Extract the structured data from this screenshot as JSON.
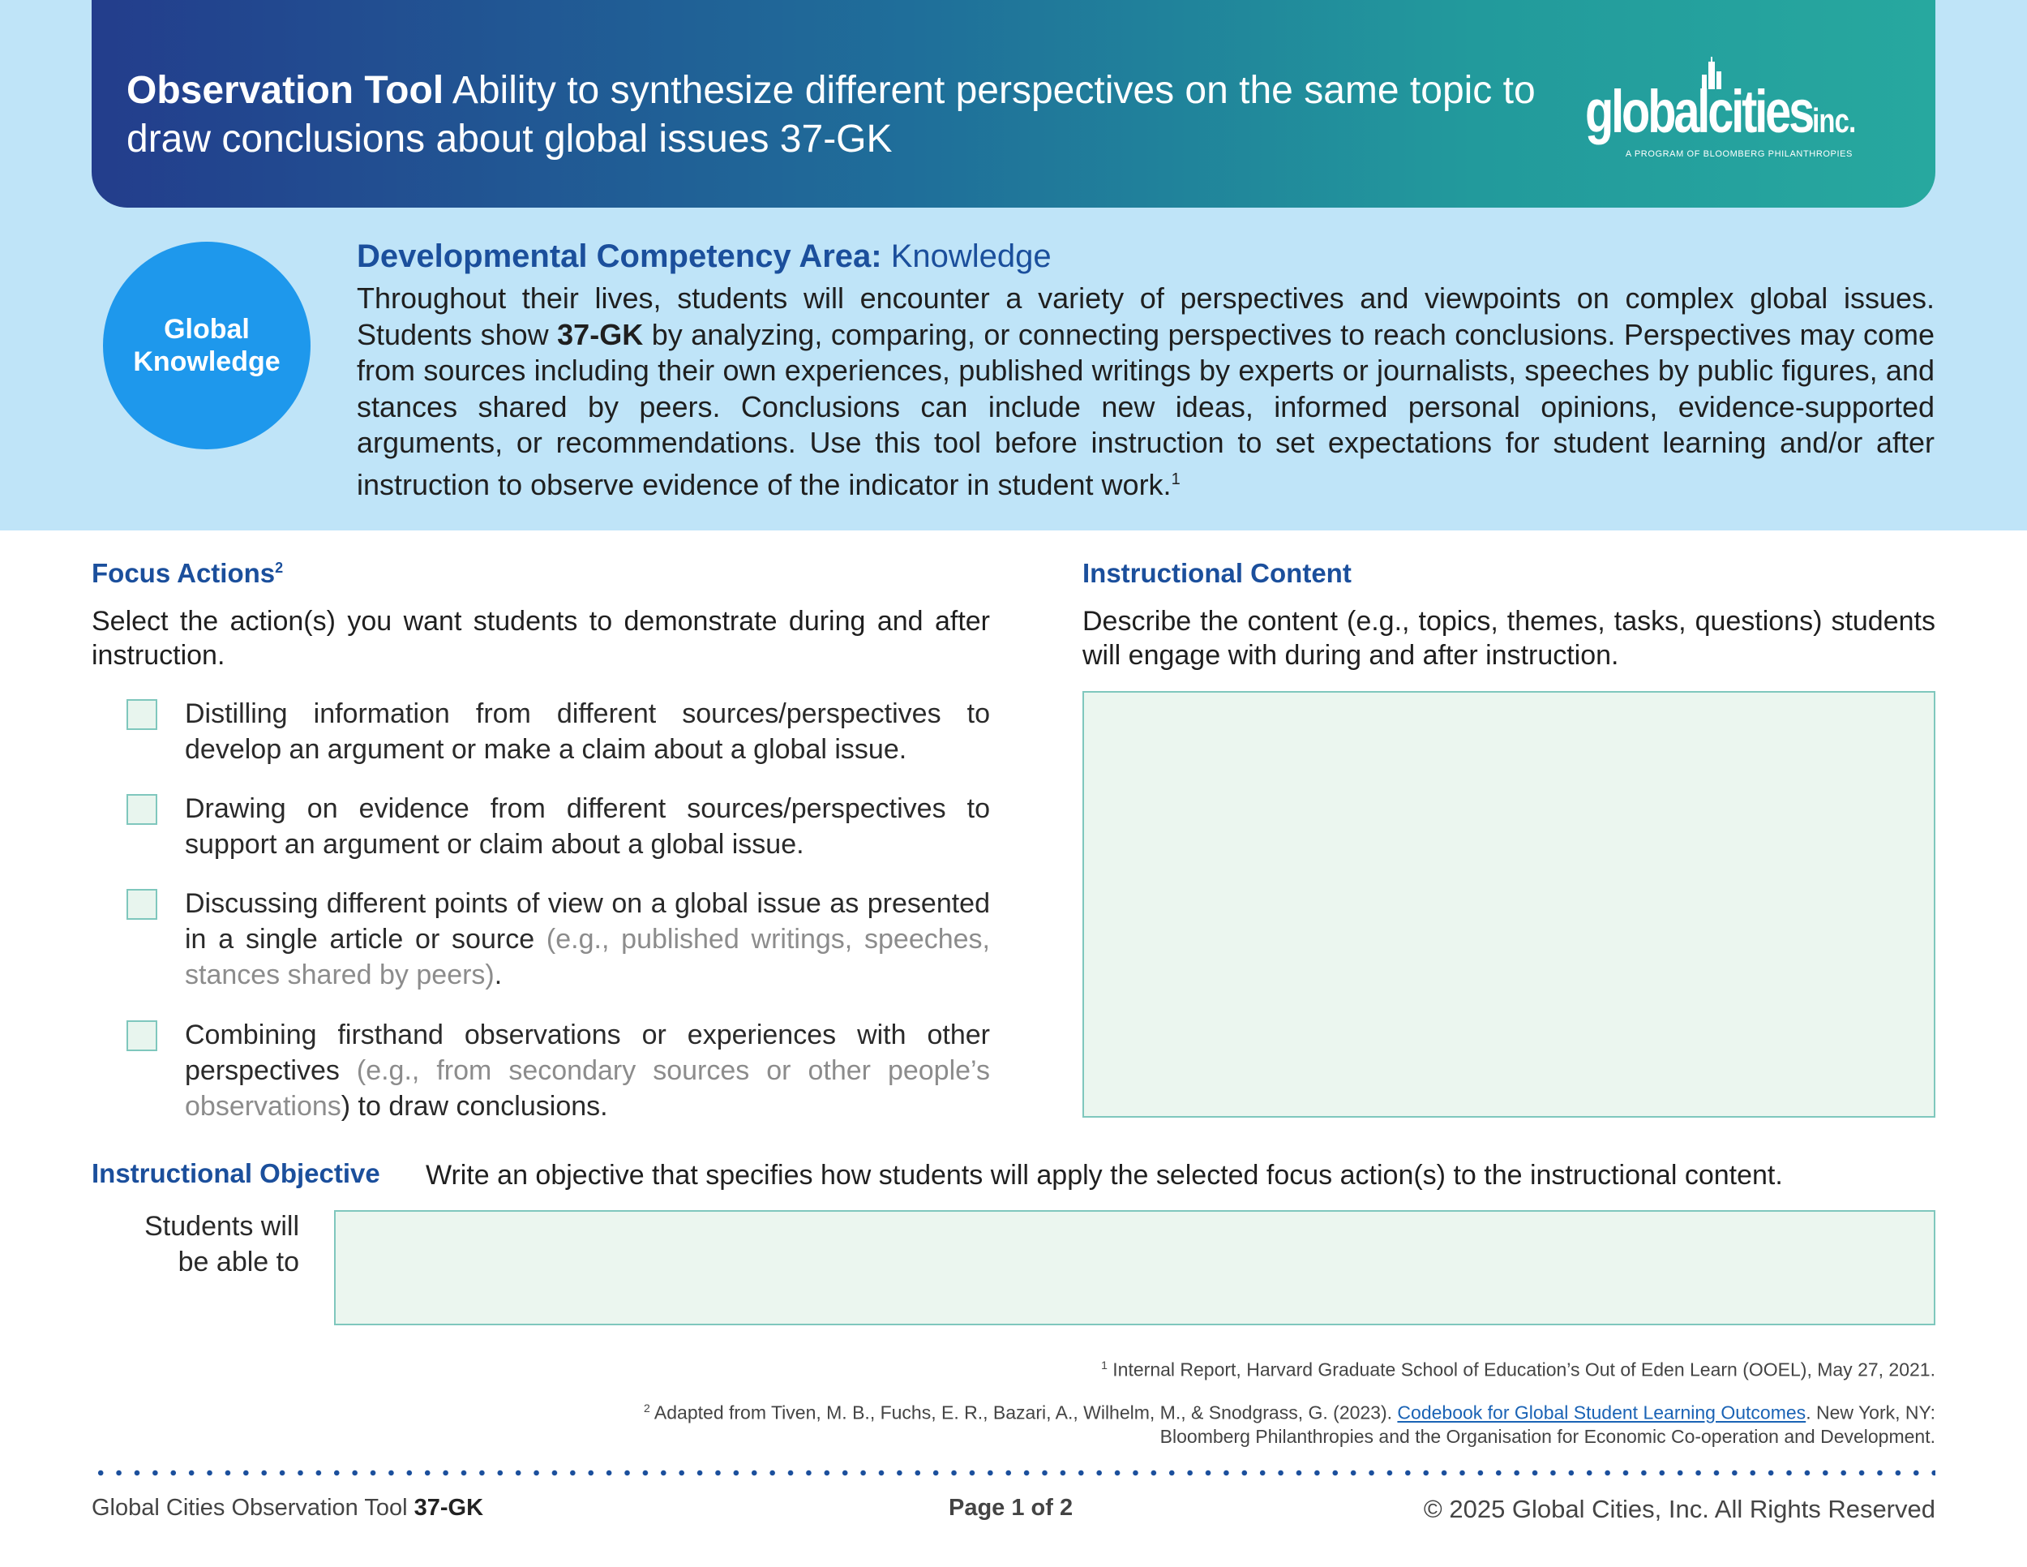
{
  "header": {
    "title_bold": "Observation Tool",
    "title_rest": "Ability to synthesize different perspectives on the same topic to draw conclusions about global issues 37-GK",
    "logo_text": "globalcities",
    "logo_suffix": "inc.",
    "logo_tagline": "A PROGRAM OF BLOOMBERG PHILANTHROPIES"
  },
  "badge": {
    "line1": "Global",
    "line2": "Knowledge"
  },
  "competency": {
    "label": "Developmental Competency Area:",
    "value": "Knowledge"
  },
  "intro": {
    "part1": "Throughout their lives, students will encounter a variety of perspectives and viewpoints on complex global issues. Students show ",
    "code": "37-GK",
    "part2": " by analyzing, comparing, or connecting perspectives to reach conclusions. Perspectives may come from sources including their own experiences, published writings by experts or journalists, speeches by public figures, and stances shared by peers. Conclusions can include new ideas, informed personal opinions, evidence-supported arguments, or recommendations. Use this tool before instruction to set expectations for student learning and/or after instruction to observe evidence of the indicator in student work.",
    "footnote_ref": "1"
  },
  "focus": {
    "title": "Focus Actions",
    "footnote_ref": "2",
    "description": "Select the action(s) you want students to demonstrate during and after instruction.",
    "actions": [
      {
        "text": "Distilling information from different sources/perspectives to develop an argument or make a claim about a global issue.",
        "example": "",
        "tail": ""
      },
      {
        "text": "Drawing on evidence from different sources/perspectives to support an argument or claim about a global issue.",
        "example": "",
        "tail": ""
      },
      {
        "text": "Discussing different points of view on a global issue as presented in a single article or source ",
        "example": "(e.g., published writings, speeches, stances shared by peers)",
        "tail": "."
      },
      {
        "text": "Combining firsthand observations or experiences with other perspectives ",
        "example": "(e.g., from secondary sources or other people’s observations",
        "tail": ") to draw conclusions."
      }
    ]
  },
  "content": {
    "title": "Instructional Content",
    "description": "Describe the content (e.g., topics, themes, tasks, questions) students will engage with during and after instruction."
  },
  "objective": {
    "title": "Instructional Objective",
    "description": "Write an objective that specifies how students will apply the selected focus action(s) to the instructional content.",
    "label_line1": "Students will",
    "label_line2": "be able to"
  },
  "footnotes": {
    "n1": "1",
    "f1": "Internal Report, Harvard Graduate School of Education’s Out of Eden Learn (OOEL), May 27, 2021.",
    "n2": "2",
    "f2_pre": "Adapted from Tiven, M. B., Fuchs, E. R., Bazari, A., Wilhelm, M., & Snodgrass, G. (2023). ",
    "f2_link": "Codebook for Global Student Learning Outcomes",
    "f2_post": ". New York, NY: Bloomberg Philanthropies and the Organisation for Economic Co-operation and Development."
  },
  "footer": {
    "left": "Global Cities Observation Tool",
    "code": "37-GK",
    "page": "Page 1 of 2",
    "rights": "© 2025 Global Cities, Inc. All Rights Reserved"
  },
  "colors": {
    "header_start": "#233d8c",
    "header_end": "#27a89f",
    "band": "#bfe4f8",
    "badge": "#1e98ec",
    "heading_blue": "#1b4f9c",
    "input_fill": "#ebf6ef",
    "input_border": "#7fc7bd"
  }
}
